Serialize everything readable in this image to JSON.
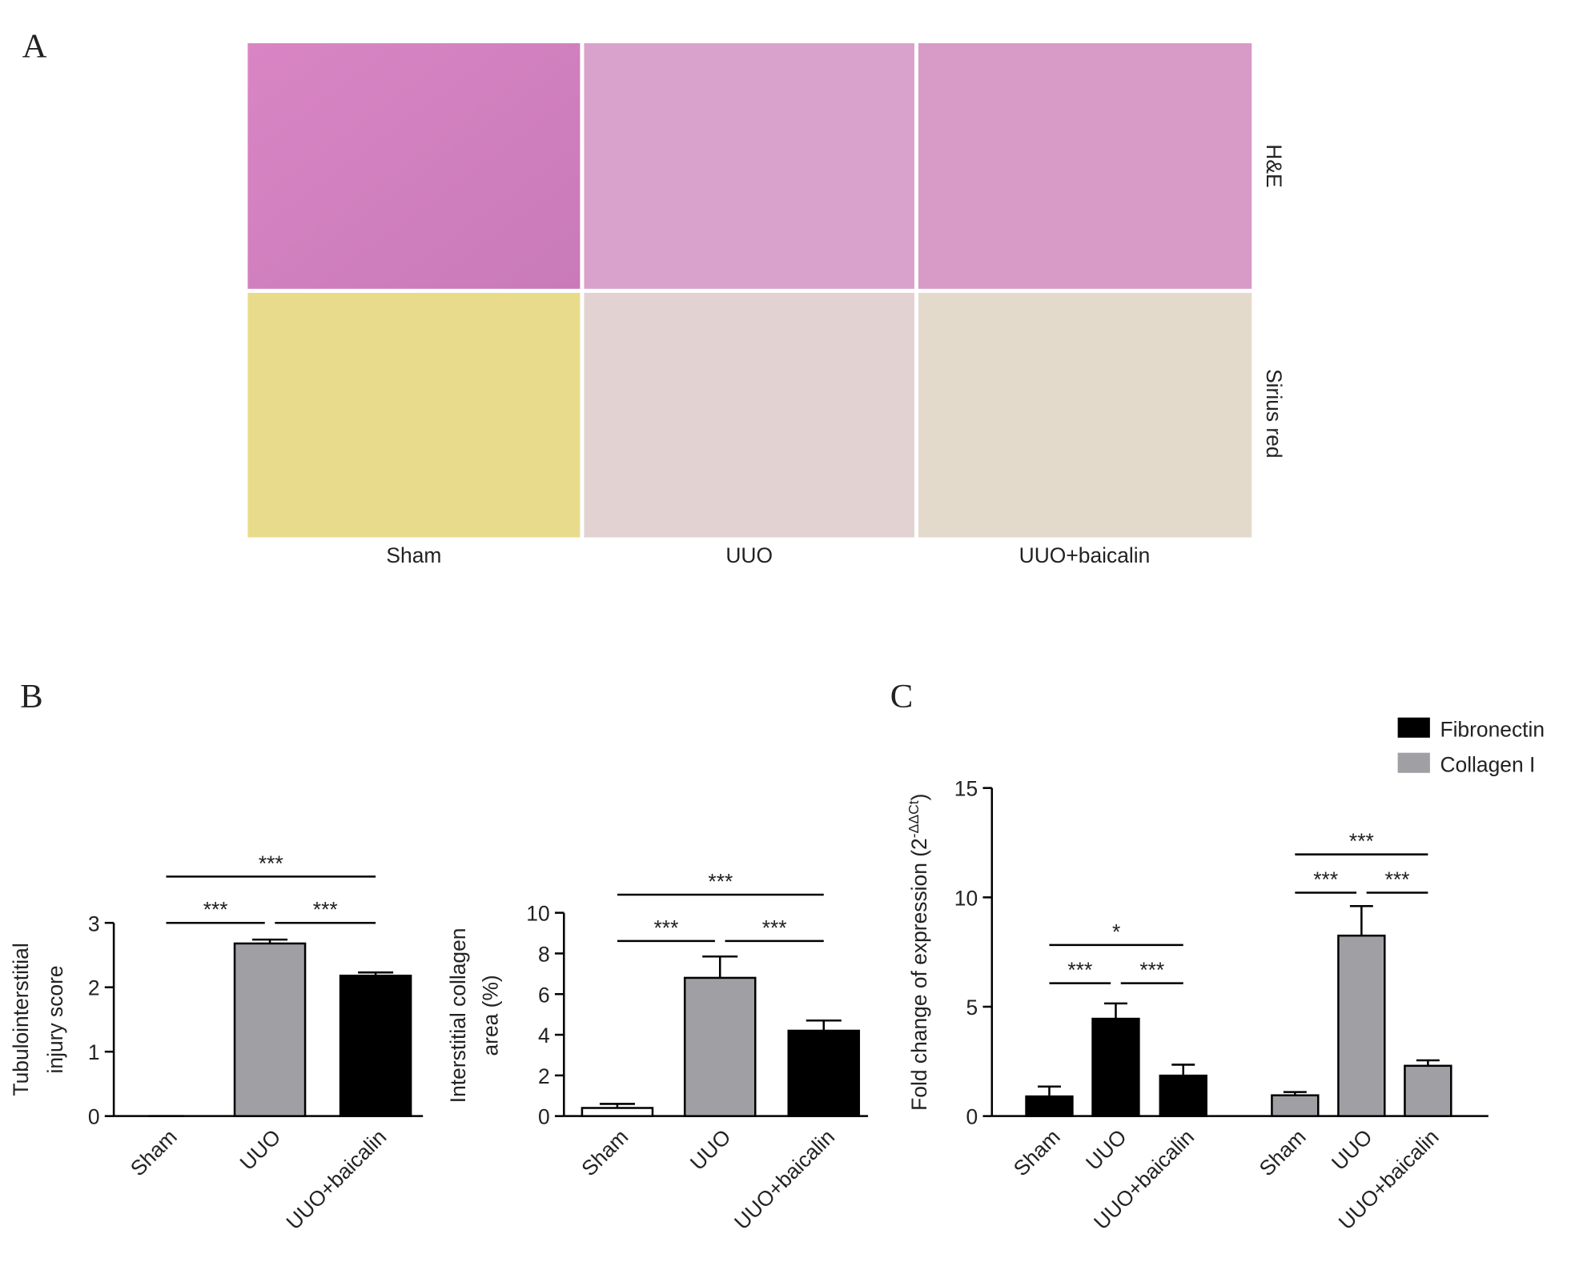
{
  "panel_labels": [
    "A",
    "B",
    "C"
  ],
  "panel_a": {
    "rows": [
      "H&E",
      "Sirius red"
    ],
    "columns": [
      "Sham",
      "UUO",
      "UUO+baicalin"
    ]
  },
  "chart_data": [
    {
      "type": "bar",
      "ylabel": [
        "Tubulointerstitial",
        "injury score"
      ],
      "categories": [
        "Sham",
        "UUO",
        "UUO+baicalin"
      ],
      "values": [
        0,
        2.68,
        2.18
      ],
      "errors": [
        0,
        0.06,
        0.05
      ],
      "colors": [
        "#ffffff",
        "#a0a0a4",
        "#000000"
      ],
      "ylim": [
        0,
        3
      ],
      "yticks": [
        0,
        1,
        2,
        3
      ],
      "significance": [
        {
          "from": 0,
          "to": 2,
          "label": "***"
        },
        {
          "from": 0,
          "to": 1,
          "label": "***"
        },
        {
          "from": 1,
          "to": 2,
          "label": "***"
        }
      ]
    },
    {
      "type": "bar",
      "ylabel": [
        "Interstitial collagen",
        "area (%)"
      ],
      "categories": [
        "Sham",
        "UUO",
        "UUO+baicalin"
      ],
      "values": [
        0.4,
        6.8,
        4.2
      ],
      "errors": [
        0.2,
        1.05,
        0.5
      ],
      "colors": [
        "#ffffff",
        "#a0a0a4",
        "#000000"
      ],
      "ylim": [
        0,
        10
      ],
      "yticks": [
        0,
        2,
        4,
        6,
        8,
        10
      ],
      "significance": [
        {
          "from": 0,
          "to": 2,
          "label": "***"
        },
        {
          "from": 0,
          "to": 1,
          "label": "***"
        },
        {
          "from": 1,
          "to": 2,
          "label": "***"
        }
      ]
    },
    {
      "type": "grouped_bar",
      "ylabel": [
        "Fold change of expression (2",
        "-ΔΔCt",
        ")"
      ],
      "categories": [
        "Sham",
        "UUO",
        "UUO+baicalin"
      ],
      "series": [
        {
          "name": "Fibronectin",
          "color": "#000000",
          "values": [
            0.9,
            4.45,
            1.85
          ],
          "errors": [
            0.45,
            0.7,
            0.5
          ],
          "significance": [
            {
              "from": 0,
              "to": 2,
              "label": "*"
            },
            {
              "from": 0,
              "to": 1,
              "label": "***"
            },
            {
              "from": 1,
              "to": 2,
              "label": "***"
            }
          ]
        },
        {
          "name": "Collagen I",
          "color": "#a0a0a4",
          "values": [
            0.95,
            8.25,
            2.3
          ],
          "errors": [
            0.15,
            1.35,
            0.25
          ],
          "significance": [
            {
              "from": 0,
              "to": 2,
              "label": "***"
            },
            {
              "from": 0,
              "to": 1,
              "label": "***"
            },
            {
              "from": 1,
              "to": 2,
              "label": "***"
            }
          ]
        }
      ],
      "ylim": [
        0,
        15
      ],
      "yticks": [
        0,
        5,
        10,
        15
      ],
      "legend": "upper right"
    }
  ]
}
